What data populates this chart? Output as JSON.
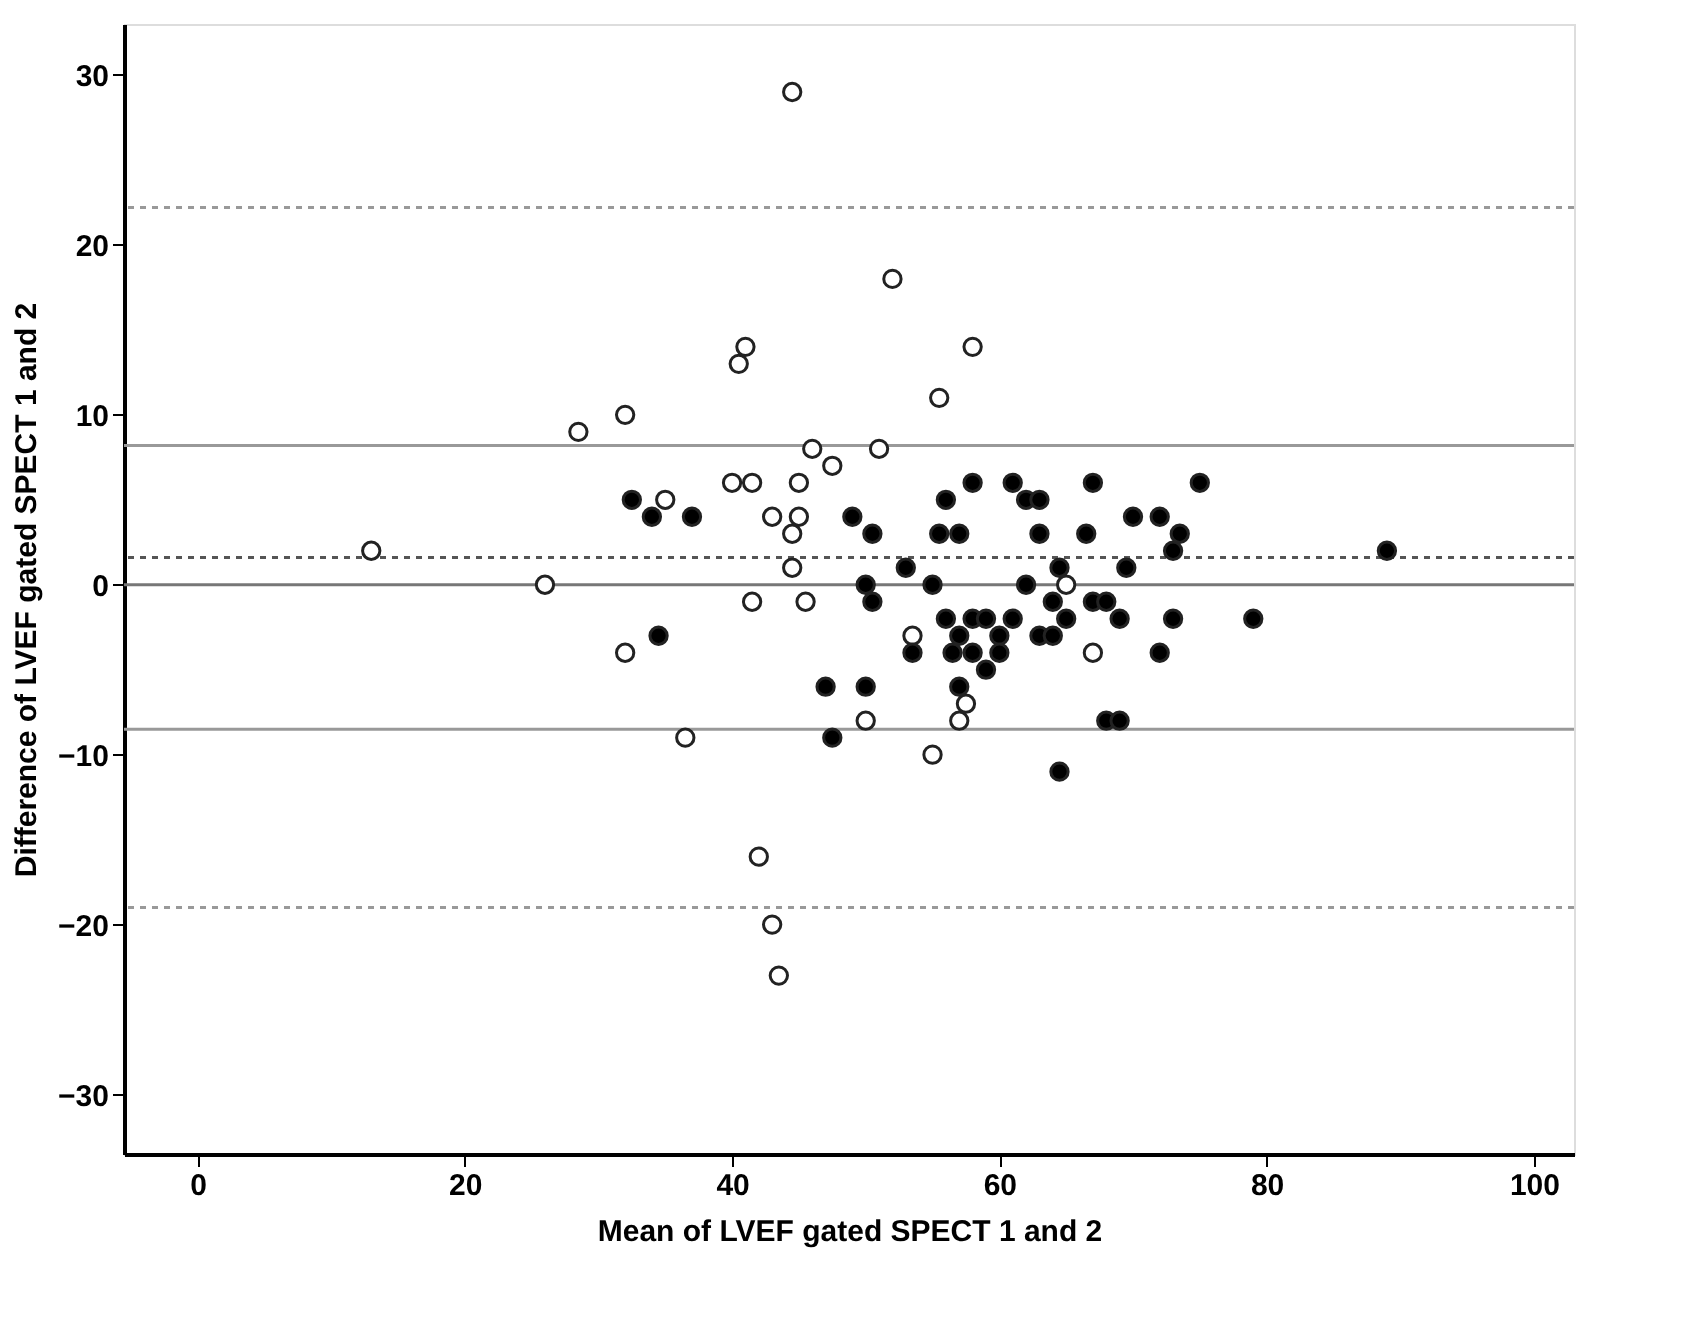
{
  "chart_data": {
    "type": "scatter",
    "xlabel": "Mean of LVEF gated SPECT 1 and 2",
    "ylabel": "Difference of LVEF gated SPECT 1 and 2",
    "xlim": [
      -5.5,
      103
    ],
    "xticks": [
      0,
      20,
      40,
      60,
      80,
      100
    ],
    "ylim": [
      -33.5,
      33
    ],
    "yticks": [
      -30,
      -20,
      -10,
      0,
      10,
      20,
      30
    ],
    "grid": false,
    "marker": "circle",
    "series": [
      {
        "color": "#ffffff",
        "x": [
          13,
          26,
          28.5,
          32,
          32,
          35,
          36.5,
          40,
          40.5,
          41,
          41.5,
          41.5,
          42,
          43,
          43,
          43.5,
          44.5,
          44.5,
          44.5,
          45,
          45,
          45.5,
          46,
          47.5,
          50,
          51,
          52,
          53.5,
          55,
          55.5,
          57,
          57.5,
          58,
          65,
          67
        ],
        "values": [
          2,
          0,
          9,
          10,
          -4,
          5,
          -9,
          6,
          13,
          14,
          6,
          -1,
          -16,
          4,
          -20,
          -23,
          29,
          3,
          1,
          4,
          6,
          -1,
          8,
          7,
          -8,
          8,
          18,
          -3,
          -10,
          11,
          -8,
          -7,
          14,
          0,
          -4
        ]
      },
      {
        "color": "#000000",
        "x": [
          32.5,
          34,
          34.5,
          37,
          47,
          47.5,
          49,
          50,
          50,
          50.5,
          50.5,
          53,
          53.5,
          55,
          55.5,
          56,
          56,
          56.5,
          57,
          57,
          57,
          57.5,
          58,
          58,
          58,
          59,
          59,
          60,
          60,
          61,
          61,
          62,
          62,
          62.5,
          63,
          63,
          63,
          64,
          64,
          64.5,
          64.5,
          65,
          66.5,
          67,
          67,
          68,
          68,
          69,
          69,
          69.5,
          70,
          72,
          72,
          73,
          73,
          73.5,
          75,
          79,
          89
        ],
        "values": [
          5,
          4,
          -3,
          4,
          -6,
          -9,
          4,
          0,
          -6,
          -1,
          3,
          1,
          -4,
          0,
          3,
          5,
          -2,
          -4,
          3,
          -3,
          -6,
          null,
          -2,
          6,
          -4,
          -2,
          -5,
          -3,
          -4,
          6,
          -2,
          5,
          0,
          null,
          3,
          5,
          -3,
          -1,
          -3,
          1,
          -11,
          -2,
          3,
          6,
          -1,
          -1,
          -8,
          -8,
          -2,
          1,
          4,
          4,
          -4,
          -2,
          2,
          3,
          6,
          -2,
          2
        ]
      }
    ],
    "ref_lines": [
      {
        "axis": "y",
        "value": 0,
        "color": "#777777",
        "line_style": "solid"
      },
      {
        "axis": "y",
        "value": 8.2,
        "color": "#999999",
        "line_style": "solid"
      },
      {
        "axis": "y",
        "value": -8.5,
        "color": "#999999",
        "line_style": "solid"
      },
      {
        "axis": "y",
        "value": 1.6,
        "color": "#555555",
        "line_style": "dotted"
      },
      {
        "axis": "y",
        "value": 22.2,
        "color": "#999999",
        "line_style": "dotted"
      },
      {
        "axis": "y",
        "value": -19,
        "color": "#999999",
        "line_style": "dotted"
      }
    ]
  }
}
